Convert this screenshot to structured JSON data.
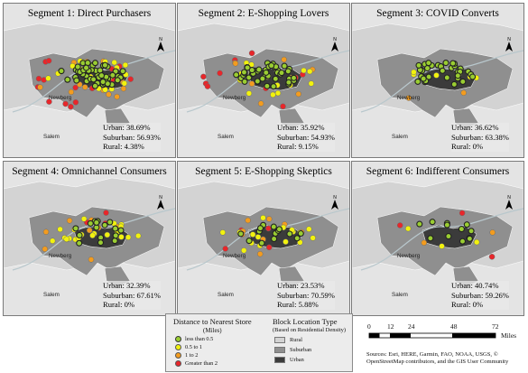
{
  "panels": [
    {
      "title": "Segment 1: Direct Purchasers",
      "urban": "Urban: 38.69%",
      "suburban": "Suburban: 56.93%",
      "rural": "Rural: 4.38%",
      "counts": {
        "green": 48,
        "yellow": 18,
        "orange": 12,
        "red": 16
      }
    },
    {
      "title": "Segment 2: E-Shopping Lovers",
      "urban": "Urban: 35.92%",
      "suburban": "Suburban: 54.93%",
      "rural": "Rural: 9.15%",
      "counts": {
        "green": 44,
        "yellow": 18,
        "orange": 10,
        "red": 10
      }
    },
    {
      "title": "Segment 3: COVID Converts",
      "urban": "Urban: 36.62%",
      "suburban": "Suburban: 63.38%",
      "rural": "Rural: 0%",
      "counts": {
        "green": 34,
        "yellow": 6,
        "orange": 3,
        "red": 0
      }
    },
    {
      "title": "Segment 4: Omnichannel Consumers",
      "urban": "Urban: 32.39%",
      "suburban": "Suburban: 67.61%",
      "rural": "Rural: 0%",
      "counts": {
        "green": 16,
        "yellow": 22,
        "orange": 8,
        "red": 4
      }
    },
    {
      "title": "Segment 5: E-Shopping Skeptics",
      "urban": "Urban: 23.53%",
      "suburban": "Suburban: 70.59%",
      "rural": "Rural: 5.88%",
      "counts": {
        "green": 14,
        "yellow": 16,
        "orange": 8,
        "red": 4
      }
    },
    {
      "title": "Segment 6: Indifferent Consumers",
      "urban": "Urban: 40.74%",
      "suburban": "Suburban: 59.26%",
      "rural": "Rural: 0%",
      "counts": {
        "green": 12,
        "yellow": 3,
        "orange": 2,
        "red": 3
      }
    }
  ],
  "places": {
    "newberg": "Newberg",
    "salem": "Salem"
  },
  "legend": {
    "distance_title": "Distance to Nearest Store",
    "distance_units": "(Miles)",
    "distance_items": [
      "less than 0.5",
      "0.5 to 1",
      "1 to 2",
      "Greater than 2"
    ],
    "block_title": "Block Location Type",
    "block_sub": "(Based on Residential Density)",
    "block_items": [
      "Rural",
      "Suburban",
      "Urban"
    ]
  },
  "scale": {
    "ticks": [
      "0",
      "12",
      "24",
      "48",
      "72"
    ],
    "unit": "Miles"
  },
  "sources": "Sources: Esri, HERE, Garmin, FAO, NOAA, USGS, © OpenStreetMap contributors, and the GIS User Community",
  "colors": {
    "green": "#9acd32",
    "yellow": "#f2f20e",
    "orange": "#f39c1f",
    "red": "#e8262a",
    "rural": "#d3d3d3",
    "suburban": "#8f8f8f",
    "urban": "#3b3b3b"
  }
}
